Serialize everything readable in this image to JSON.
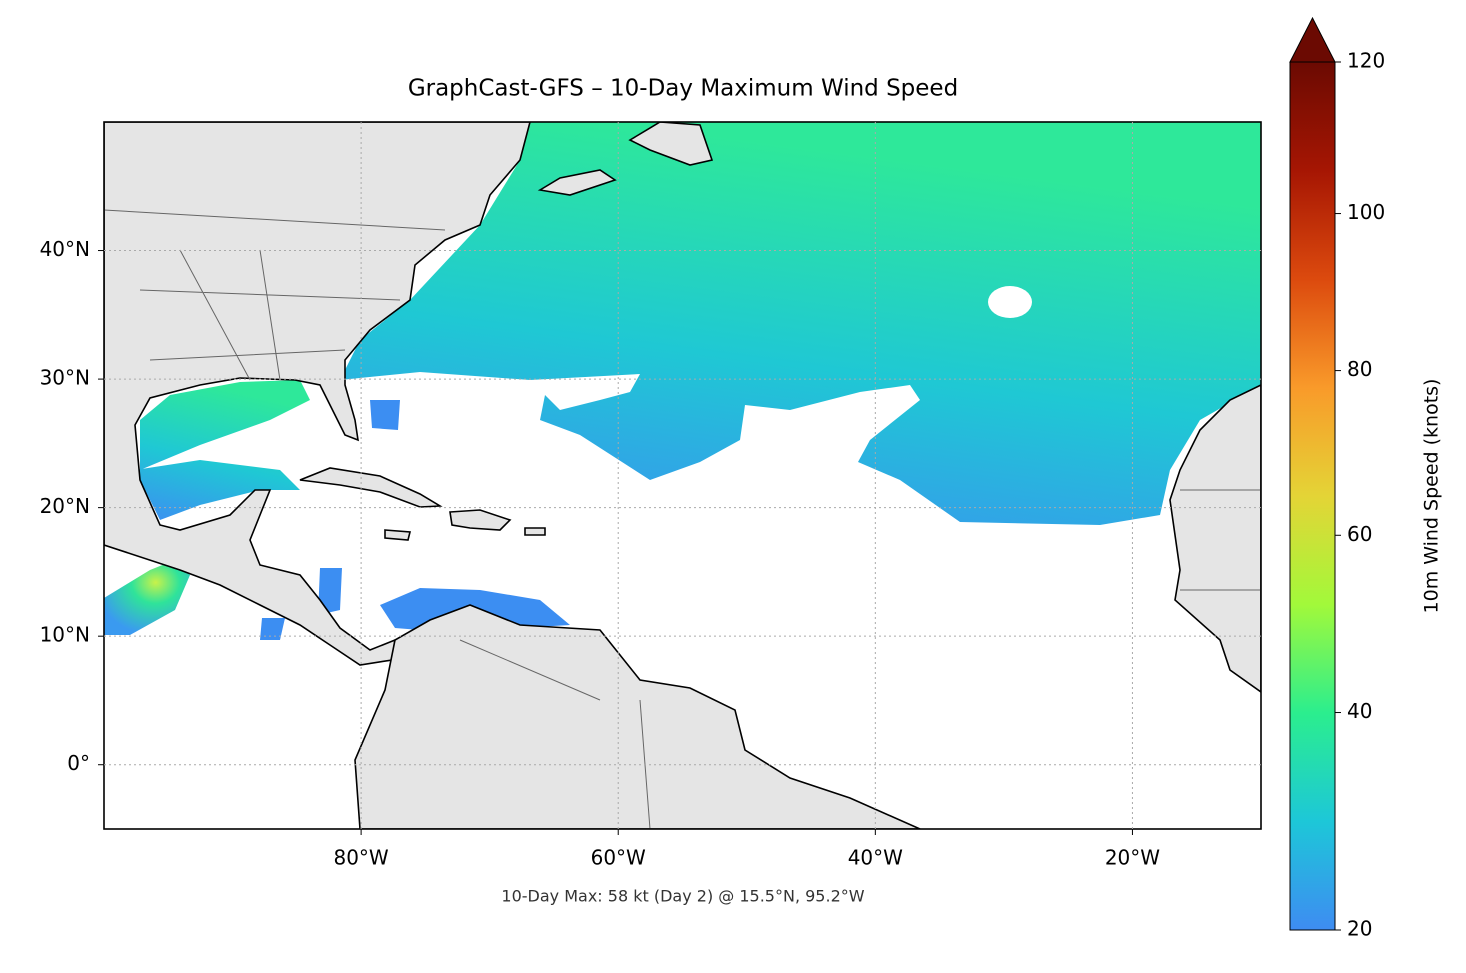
{
  "chart_data": {
    "type": "map",
    "title": "GraphCast-GFS – 10-Day Maximum Wind Speed",
    "annotation": "10-Day Max: 58 kt (Day 2) @ 15.5°N, 95.2°W",
    "xlim": [
      -100,
      -10
    ],
    "ylim": [
      -5,
      50
    ],
    "xticks": [
      {
        "value": -80,
        "label": "80°W"
      },
      {
        "value": -60,
        "label": "60°W"
      },
      {
        "value": -40,
        "label": "40°W"
      },
      {
        "value": -20,
        "label": "20°W"
      }
    ],
    "yticks": [
      {
        "value": 0,
        "label": "0°"
      },
      {
        "value": 10,
        "label": "10°N"
      },
      {
        "value": 20,
        "label": "20°N"
      },
      {
        "value": 30,
        "label": "30°N"
      },
      {
        "value": 40,
        "label": "40°N"
      }
    ],
    "grid": true,
    "colorbar": {
      "label": "10m Wind Speed (knots)",
      "clim": [
        20,
        120
      ],
      "ticks": [
        20,
        40,
        60,
        80,
        100,
        120
      ],
      "scale": "power",
      "gamma": 0.86,
      "extend": "max",
      "colormap": [
        "#3e8cf2",
        "#1dc7d8",
        "#2bee8e",
        "#a2f93a",
        "#e4d436",
        "#f99a2a",
        "#dc4a0e",
        "#a61603",
        "#6b0a02"
      ]
    }
  }
}
